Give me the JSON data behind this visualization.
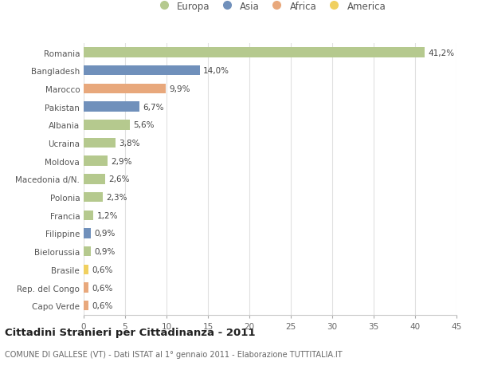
{
  "categories": [
    "Romania",
    "Bangladesh",
    "Marocco",
    "Pakistan",
    "Albania",
    "Ucraina",
    "Moldova",
    "Macedonia d/N.",
    "Polonia",
    "Francia",
    "Filippine",
    "Bielorussia",
    "Brasile",
    "Rep. del Congo",
    "Capo Verde"
  ],
  "values": [
    41.2,
    14.0,
    9.9,
    6.7,
    5.6,
    3.8,
    2.9,
    2.6,
    2.3,
    1.2,
    0.9,
    0.9,
    0.6,
    0.6,
    0.6
  ],
  "labels": [
    "41,2%",
    "14,0%",
    "9,9%",
    "6,7%",
    "5,6%",
    "3,8%",
    "2,9%",
    "2,6%",
    "2,3%",
    "1,2%",
    "0,9%",
    "0,9%",
    "0,6%",
    "0,6%",
    "0,6%"
  ],
  "continents": [
    "Europa",
    "Asia",
    "Africa",
    "Asia",
    "Europa",
    "Europa",
    "Europa",
    "Europa",
    "Europa",
    "Europa",
    "Asia",
    "Europa",
    "America",
    "Africa",
    "Africa"
  ],
  "continent_colors": {
    "Europa": "#b5c98e",
    "Asia": "#7090bb",
    "Africa": "#e8a87c",
    "America": "#f0d060"
  },
  "legend_order": [
    "Europa",
    "Asia",
    "Africa",
    "America"
  ],
  "xlim": [
    0,
    45
  ],
  "xticks": [
    0,
    5,
    10,
    15,
    20,
    25,
    30,
    35,
    40,
    45
  ],
  "title": "Cittadini Stranieri per Cittadinanza - 2011",
  "subtitle": "COMUNE DI GALLESE (VT) - Dati ISTAT al 1° gennaio 2011 - Elaborazione TUTTITALIA.IT",
  "background_color": "#ffffff",
  "bar_height": 0.55,
  "grid_color": "#e0e0e0",
  "label_fontsize": 7.5,
  "ytick_fontsize": 7.5,
  "xtick_fontsize": 7.5,
  "legend_fontsize": 8.5,
  "title_fontsize": 9.5,
  "subtitle_fontsize": 7.0
}
